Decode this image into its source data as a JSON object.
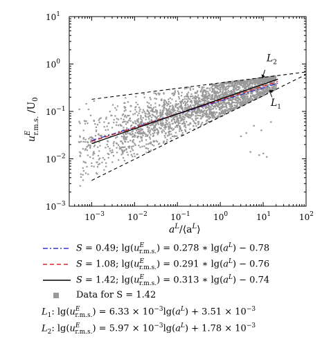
{
  "chart_data": {
    "type": "scatter",
    "x_scale": "log",
    "y_scale": "log",
    "xlim": [
      0.0003,
      100
    ],
    "ylim": [
      0.001,
      10
    ],
    "x_ticks": [
      "10^-3",
      "10^-2",
      "10^-1",
      "10^0",
      "10^1",
      "10^2"
    ],
    "y_ticks": [
      "10^-3",
      "10^-2",
      "10^-1",
      "10^0",
      "10^1"
    ],
    "xlabel": "a^L/⟨a^L⟩",
    "ylabel": "u^E_r.m.s./U_0",
    "series": [
      {
        "name": "S = 0.49",
        "equation": "lg(u^E_r.m.s.) = 0.278 * lg(a^L) − 0.78",
        "slope": 0.278,
        "intercept": -0.78,
        "color": "#3333cc",
        "dash": "dashdot",
        "x_range": [
          0.001,
          22
        ]
      },
      {
        "name": "S = 1.08",
        "equation": "lg(u^E_r.m.s.) = 0.291 * lg(a^L) − 0.76",
        "slope": 0.291,
        "intercept": -0.76,
        "color": "#d62728",
        "dash": "dashed",
        "x_range": [
          0.001,
          22
        ]
      },
      {
        "name": "S = 1.42",
        "equation": "lg(u^E_r.m.s.) = 0.313 * lg(a^L) − 0.74",
        "slope": 0.313,
        "intercept": -0.74,
        "color": "#000000",
        "dash": "solid",
        "x_range": [
          0.001,
          22
        ]
      }
    ],
    "scatter_series": {
      "name": "Data for S = 1.42",
      "color": "#999999"
    },
    "bounds": [
      {
        "name": "L_1",
        "equation": "lg(u^E_r.m.s.) = 6.33 × 10^−3 lg(a^L) + 3.51 × 10^−3",
        "points": [
          [
            0.001,
            0.0035
          ],
          [
            100,
            0.6
          ]
        ]
      },
      {
        "name": "L_2",
        "equation": "lg(u^E_r.m.s.) = 5.97 × 10^−3 lg(a^L) + 1.78 × 10^−3",
        "points": [
          [
            0.001,
            0.18
          ],
          [
            100,
            0.68
          ]
        ]
      }
    ],
    "annotations": [
      "L_2",
      "L_1"
    ]
  },
  "legend": {
    "s049": "S = 0.49; lg(u",
    "s049_rest": ") = 0.278 * lg(a",
    "s049_end": ") − 0.78",
    "s108_rest": ") = 0.291 * lg(a",
    "s108_end": ") − 0.76",
    "s142_rest": ") = 0.313 * lg(a",
    "s142_end": ") − 0.74",
    "data": "Data for S = 1.42"
  }
}
